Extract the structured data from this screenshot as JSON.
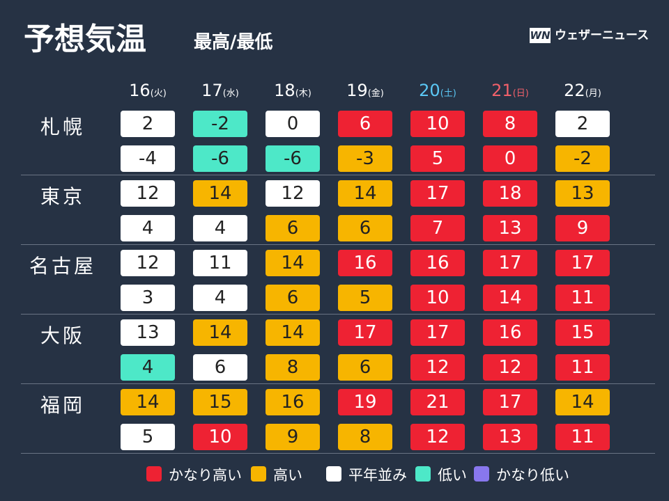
{
  "header": {
    "title": "予想気温",
    "subtitle": "最高/最低",
    "logo_mark": "WN",
    "logo_text": "ウェザーニュース"
  },
  "days": [
    {
      "date": "16",
      "weekday": "(火)",
      "color": "#ffffff"
    },
    {
      "date": "17",
      "weekday": "(水)",
      "color": "#ffffff"
    },
    {
      "date": "18",
      "weekday": "(木)",
      "color": "#ffffff"
    },
    {
      "date": "19",
      "weekday": "(金)",
      "color": "#ffffff"
    },
    {
      "date": "20",
      "weekday": "(土)",
      "color": "#5bc8f5"
    },
    {
      "date": "21",
      "weekday": "(日)",
      "color": "#f0606a"
    },
    {
      "date": "22",
      "weekday": "(月)",
      "color": "#ffffff"
    }
  ],
  "cities": [
    {
      "name": "札幌",
      "max": [
        {
          "value": 2,
          "color": "#ffffff"
        },
        {
          "value": -2,
          "color": "#4de8c8"
        },
        {
          "value": 0,
          "color": "#ffffff"
        },
        {
          "value": 6,
          "color": "#ee2233"
        },
        {
          "value": 10,
          "color": "#ee2233"
        },
        {
          "value": 8,
          "color": "#ee2233"
        },
        {
          "value": 2,
          "color": "#ffffff"
        }
      ],
      "min": [
        {
          "value": -4,
          "color": "#ffffff"
        },
        {
          "value": -6,
          "color": "#4de8c8"
        },
        {
          "value": -6,
          "color": "#4de8c8"
        },
        {
          "value": -3,
          "color": "#f7b500"
        },
        {
          "value": 5,
          "color": "#ee2233"
        },
        {
          "value": 0,
          "color": "#ee2233"
        },
        {
          "value": -2,
          "color": "#f7b500"
        }
      ]
    },
    {
      "name": "東京",
      "max": [
        {
          "value": 12,
          "color": "#ffffff"
        },
        {
          "value": 14,
          "color": "#f7b500"
        },
        {
          "value": 12,
          "color": "#ffffff"
        },
        {
          "value": 14,
          "color": "#f7b500"
        },
        {
          "value": 17,
          "color": "#ee2233"
        },
        {
          "value": 18,
          "color": "#ee2233"
        },
        {
          "value": 13,
          "color": "#f7b500"
        }
      ],
      "min": [
        {
          "value": 4,
          "color": "#ffffff"
        },
        {
          "value": 4,
          "color": "#ffffff"
        },
        {
          "value": 6,
          "color": "#f7b500"
        },
        {
          "value": 6,
          "color": "#f7b500"
        },
        {
          "value": 7,
          "color": "#ee2233"
        },
        {
          "value": 13,
          "color": "#ee2233"
        },
        {
          "value": 9,
          "color": "#ee2233"
        }
      ]
    },
    {
      "name": "名古屋",
      "max": [
        {
          "value": 12,
          "color": "#ffffff"
        },
        {
          "value": 11,
          "color": "#ffffff"
        },
        {
          "value": 14,
          "color": "#f7b500"
        },
        {
          "value": 16,
          "color": "#ee2233"
        },
        {
          "value": 16,
          "color": "#ee2233"
        },
        {
          "value": 17,
          "color": "#ee2233"
        },
        {
          "value": 17,
          "color": "#ee2233"
        }
      ],
      "min": [
        {
          "value": 3,
          "color": "#ffffff"
        },
        {
          "value": 4,
          "color": "#ffffff"
        },
        {
          "value": 6,
          "color": "#f7b500"
        },
        {
          "value": 5,
          "color": "#f7b500"
        },
        {
          "value": 10,
          "color": "#ee2233"
        },
        {
          "value": 14,
          "color": "#ee2233"
        },
        {
          "value": 11,
          "color": "#ee2233"
        }
      ]
    },
    {
      "name": "大阪",
      "max": [
        {
          "value": 13,
          "color": "#ffffff"
        },
        {
          "value": 14,
          "color": "#f7b500"
        },
        {
          "value": 14,
          "color": "#f7b500"
        },
        {
          "value": 17,
          "color": "#ee2233"
        },
        {
          "value": 17,
          "color": "#ee2233"
        },
        {
          "value": 16,
          "color": "#ee2233"
        },
        {
          "value": 15,
          "color": "#ee2233"
        }
      ],
      "min": [
        {
          "value": 4,
          "color": "#4de8c8"
        },
        {
          "value": 6,
          "color": "#ffffff"
        },
        {
          "value": 8,
          "color": "#f7b500"
        },
        {
          "value": 6,
          "color": "#f7b500"
        },
        {
          "value": 12,
          "color": "#ee2233"
        },
        {
          "value": 12,
          "color": "#ee2233"
        },
        {
          "value": 11,
          "color": "#ee2233"
        }
      ]
    },
    {
      "name": "福岡",
      "max": [
        {
          "value": 14,
          "color": "#f7b500"
        },
        {
          "value": 15,
          "color": "#f7b500"
        },
        {
          "value": 16,
          "color": "#f7b500"
        },
        {
          "value": 19,
          "color": "#ee2233"
        },
        {
          "value": 21,
          "color": "#ee2233"
        },
        {
          "value": 17,
          "color": "#ee2233"
        },
        {
          "value": 14,
          "color": "#f7b500"
        }
      ],
      "min": [
        {
          "value": 5,
          "color": "#ffffff"
        },
        {
          "value": 10,
          "color": "#ee2233"
        },
        {
          "value": 9,
          "color": "#f7b500"
        },
        {
          "value": 8,
          "color": "#f7b500"
        },
        {
          "value": 12,
          "color": "#ee2233"
        },
        {
          "value": 13,
          "color": "#ee2233"
        },
        {
          "value": 11,
          "color": "#ee2233"
        }
      ]
    }
  ],
  "legend": [
    {
      "name": "かなり高い",
      "color": "#ee2233"
    },
    {
      "name": "高い",
      "color": "#f7b500"
    },
    {
      "name": "平年並み",
      "color": "#ffffff"
    },
    {
      "name": "低い",
      "color": "#4de8c8"
    },
    {
      "name": "かなり低い",
      "color": "#8877ee"
    }
  ]
}
